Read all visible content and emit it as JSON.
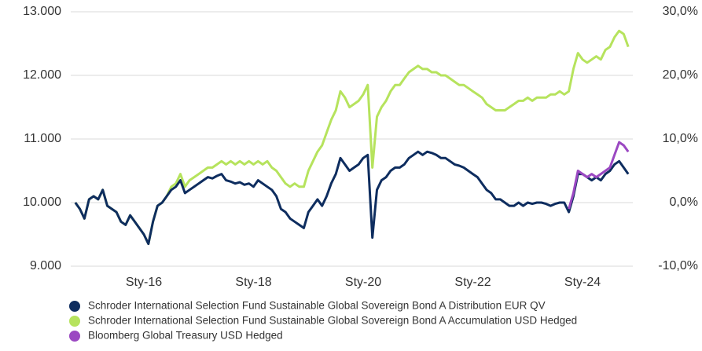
{
  "chart_data": {
    "type": "line",
    "x": [
      "2014-10",
      "2014-11",
      "2014-12",
      "2015-01",
      "2015-02",
      "2015-03",
      "2015-04",
      "2015-05",
      "2015-06",
      "2015-07",
      "2015-08",
      "2015-09",
      "2015-10",
      "2015-11",
      "2015-12",
      "2016-01",
      "2016-02",
      "2016-03",
      "2016-04",
      "2016-05",
      "2016-06",
      "2016-07",
      "2016-08",
      "2016-09",
      "2016-10",
      "2016-11",
      "2016-12",
      "2017-01",
      "2017-02",
      "2017-03",
      "2017-04",
      "2017-05",
      "2017-06",
      "2017-07",
      "2017-08",
      "2017-09",
      "2017-10",
      "2017-11",
      "2017-12",
      "2018-01",
      "2018-02",
      "2018-03",
      "2018-04",
      "2018-05",
      "2018-06",
      "2018-07",
      "2018-08",
      "2018-09",
      "2018-10",
      "2018-11",
      "2018-12",
      "2019-01",
      "2019-02",
      "2019-03",
      "2019-04",
      "2019-05",
      "2019-06",
      "2019-07",
      "2019-08",
      "2019-09",
      "2019-10",
      "2019-11",
      "2019-12",
      "2020-01",
      "2020-02",
      "2020-03",
      "2020-04",
      "2020-05",
      "2020-06",
      "2020-07",
      "2020-08",
      "2020-09",
      "2020-10",
      "2020-11",
      "2020-12",
      "2021-01",
      "2021-02",
      "2021-03",
      "2021-04",
      "2021-05",
      "2021-06",
      "2021-07",
      "2021-08",
      "2021-09",
      "2021-10",
      "2021-11",
      "2021-12",
      "2022-01",
      "2022-02",
      "2022-03",
      "2022-04",
      "2022-05",
      "2022-06",
      "2022-07",
      "2022-08",
      "2022-09",
      "2022-10",
      "2022-11",
      "2022-12",
      "2023-01",
      "2023-02",
      "2023-03",
      "2023-04",
      "2023-05",
      "2023-06",
      "2023-07",
      "2023-08",
      "2023-09",
      "2023-10",
      "2023-11",
      "2023-12",
      "2024-01",
      "2024-02",
      "2024-03",
      "2024-04",
      "2024-05",
      "2024-06",
      "2024-07",
      "2024-08",
      "2024-09",
      "2024-10",
      "2024-11"
    ],
    "series": [
      {
        "name": "Schroder International Selection Fund Sustainable Global Sovereign Bond A Distribution EUR QV",
        "color": "#0e2d5f",
        "values": [
          10000,
          9900,
          9750,
          10050,
          10100,
          10050,
          10200,
          9950,
          9900,
          9850,
          9700,
          9650,
          9800,
          9700,
          9600,
          9500,
          9350,
          9700,
          9950,
          10000,
          10100,
          10200,
          10250,
          10350,
          10150,
          10200,
          10250,
          10300,
          10350,
          10400,
          10380,
          10420,
          10450,
          10350,
          10330,
          10300,
          10320,
          10280,
          10300,
          10250,
          10350,
          10300,
          10250,
          10200,
          10100,
          9900,
          9850,
          9750,
          9700,
          9650,
          9600,
          9850,
          9950,
          10050,
          9950,
          10100,
          10300,
          10450,
          10700,
          10600,
          10500,
          10550,
          10600,
          10700,
          10750,
          9450,
          10200,
          10350,
          10400,
          10500,
          10550,
          10550,
          10600,
          10700,
          10750,
          10800,
          10750,
          10800,
          10780,
          10750,
          10700,
          10700,
          10650,
          10600,
          10580,
          10550,
          10500,
          10450,
          10400,
          10300,
          10200,
          10150,
          10050,
          10050,
          10000,
          9950,
          9950,
          10000,
          9950,
          10000,
          9980,
          10000,
          10000,
          9980,
          9950,
          9980,
          10000,
          10000,
          9850,
          10100,
          10450,
          10450,
          10400,
          10350,
          10400,
          10350,
          10450,
          10500,
          10600,
          10650,
          10550,
          10450
        ]
      },
      {
        "name": "Schroder International Selection Fund Sustainable Global Sovereign Bond A Accumulation USD Hedged",
        "color": "#b6e35d",
        "values": [
          10000,
          9900,
          9750,
          10050,
          10100,
          10050,
          10200,
          9950,
          9900,
          9850,
          9700,
          9650,
          9800,
          9700,
          9600,
          9500,
          9350,
          9700,
          9950,
          10000,
          10100,
          10250,
          10300,
          10450,
          10250,
          10350,
          10400,
          10450,
          10500,
          10550,
          10550,
          10600,
          10650,
          10600,
          10650,
          10600,
          10650,
          10600,
          10650,
          10600,
          10650,
          10600,
          10650,
          10550,
          10500,
          10400,
          10300,
          10250,
          10300,
          10250,
          10250,
          10500,
          10650,
          10800,
          10900,
          11100,
          11300,
          11450,
          11750,
          11650,
          11500,
          11550,
          11600,
          11700,
          11850,
          10550,
          11350,
          11500,
          11600,
          11750,
          11850,
          11850,
          11950,
          12050,
          12100,
          12150,
          12100,
          12100,
          12050,
          12050,
          12000,
          12000,
          11950,
          11900,
          11850,
          11850,
          11800,
          11750,
          11700,
          11650,
          11550,
          11500,
          11450,
          11450,
          11450,
          11500,
          11550,
          11600,
          11600,
          11650,
          11600,
          11650,
          11650,
          11650,
          11700,
          11700,
          11750,
          11700,
          11750,
          12100,
          12350,
          12250,
          12200,
          12250,
          12300,
          12250,
          12400,
          12450,
          12600,
          12700,
          12650,
          12450
        ]
      },
      {
        "name": "Bloomberg Global Treasury USD Hedged",
        "color": "#9b48c2",
        "axis": "y2",
        "values": [
          null,
          null,
          null,
          null,
          null,
          null,
          null,
          null,
          null,
          null,
          null,
          null,
          null,
          null,
          null,
          null,
          null,
          null,
          null,
          null,
          null,
          null,
          null,
          null,
          null,
          null,
          null,
          null,
          null,
          null,
          null,
          null,
          null,
          null,
          null,
          null,
          null,
          null,
          null,
          null,
          null,
          null,
          null,
          null,
          null,
          null,
          null,
          null,
          null,
          null,
          null,
          null,
          null,
          null,
          null,
          null,
          null,
          null,
          null,
          null,
          null,
          null,
          null,
          null,
          null,
          null,
          null,
          null,
          null,
          null,
          null,
          null,
          null,
          null,
          null,
          null,
          null,
          null,
          null,
          null,
          null,
          null,
          null,
          null,
          null,
          null,
          null,
          null,
          null,
          null,
          null,
          null,
          null,
          null,
          null,
          null,
          null,
          null,
          null,
          null,
          null,
          null,
          null,
          null,
          null,
          null,
          null,
          null,
          -1.0,
          1.5,
          5.0,
          4.5,
          4.0,
          4.5,
          4.0,
          4.5,
          5.0,
          5.5,
          7.5,
          9.5,
          9.0,
          8.0
        ]
      }
    ],
    "xlim": [
      "2014-09",
      "2024-12"
    ],
    "xticks": [
      {
        "value": "2016-01",
        "label": "Sty-16"
      },
      {
        "value": "2018-01",
        "label": "Sty-18"
      },
      {
        "value": "2020-01",
        "label": "Sty-20"
      },
      {
        "value": "2022-01",
        "label": "Sty-22"
      },
      {
        "value": "2024-01",
        "label": "Sty-24"
      }
    ],
    "ylim": [
      9000,
      13000
    ],
    "yticks": [
      {
        "value": 9000,
        "label": "9.000"
      },
      {
        "value": 10000,
        "label": "10.000"
      },
      {
        "value": 11000,
        "label": "11.000"
      },
      {
        "value": 12000,
        "label": "12.000"
      },
      {
        "value": 13000,
        "label": "13.000"
      }
    ],
    "y2lim": [
      -10,
      30
    ],
    "y2ticks": [
      {
        "value": -10,
        "label": "-10,0%"
      },
      {
        "value": 0,
        "label": "0,0%"
      },
      {
        "value": 10,
        "label": "10,0%"
      },
      {
        "value": 20,
        "label": "20,0%"
      },
      {
        "value": 30,
        "label": "30,0%"
      }
    ],
    "grid": true,
    "legend": "bottom"
  }
}
